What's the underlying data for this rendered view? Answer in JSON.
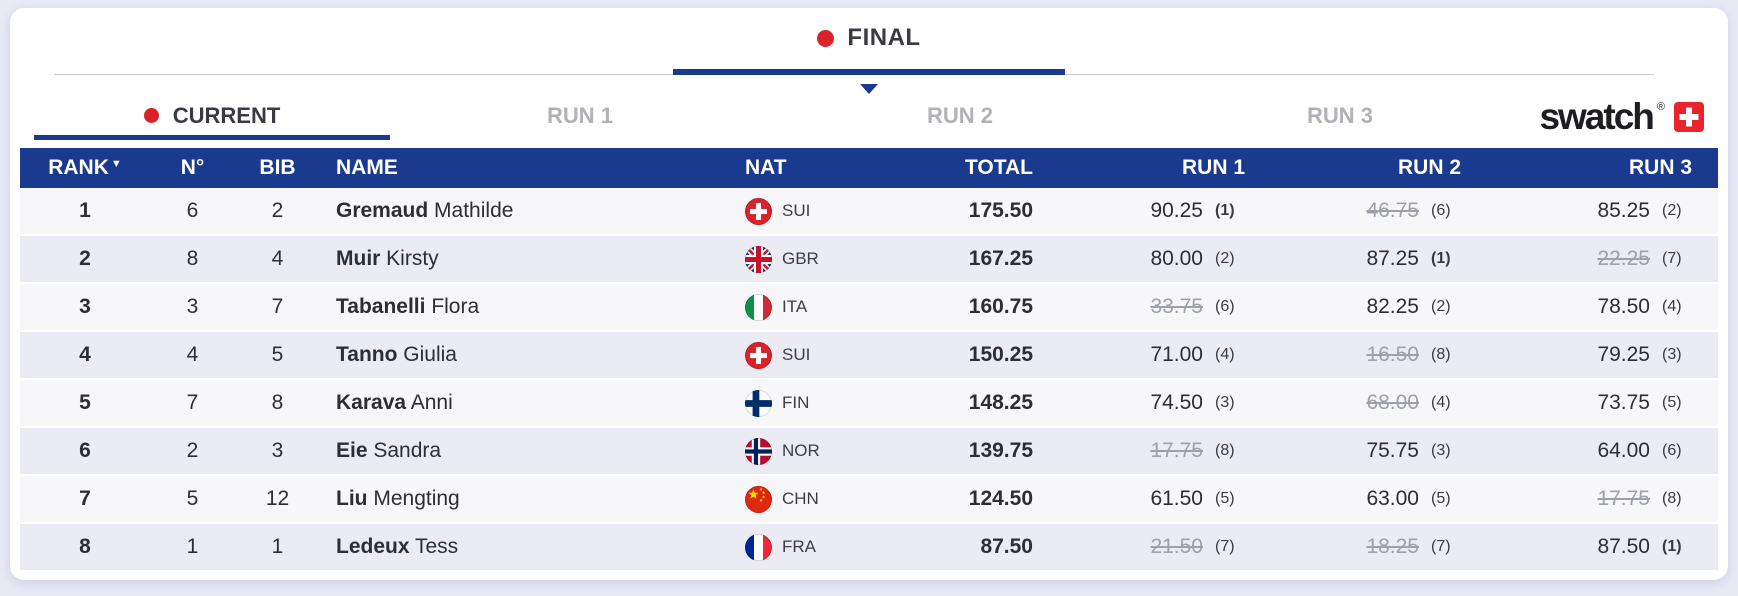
{
  "colors": {
    "page_bg": "#e8e9f5",
    "navy": "#1a3a8f",
    "red": "#d9232a",
    "dark_text": "#3a3a43",
    "inactive_tab": "#b1b1b7",
    "score_text": "#2d2d33",
    "struck_text": "#9ea0a8",
    "row_light": "#f7f7f9",
    "row_dark": "#ebecf3",
    "line_gray": "#c9c9d2",
    "swiss_cross_red": "#e8242c"
  },
  "stage_tab": {
    "label": "FINAL"
  },
  "tabs": [
    {
      "label": "CURRENT",
      "active": true
    },
    {
      "label": "RUN 1",
      "active": false
    },
    {
      "label": "RUN 2",
      "active": false
    },
    {
      "label": "RUN 3",
      "active": false
    }
  ],
  "brand": {
    "text": "swatch",
    "mark": "®"
  },
  "table": {
    "headers": {
      "rank": "RANK",
      "sort_indicator": "▼",
      "number": "N°",
      "bib": "BIB",
      "name": "NAME",
      "nat": "NAT",
      "total": "TOTAL",
      "run1": "RUN 1",
      "run2": "RUN 2",
      "run3": "RUN 3"
    },
    "rows": [
      {
        "rank": "1",
        "number": "6",
        "bib": "2",
        "last_name": "Gremaud",
        "first_name": "Mathilde",
        "nat": "SUI",
        "total": "175.50",
        "runs": [
          {
            "score": "90.25",
            "rank": "(1)",
            "struck": false,
            "best": true
          },
          {
            "score": "46.75",
            "rank": "(6)",
            "struck": true,
            "best": false
          },
          {
            "score": "85.25",
            "rank": "(2)",
            "struck": false,
            "best": false
          }
        ]
      },
      {
        "rank": "2",
        "number": "8",
        "bib": "4",
        "last_name": "Muir",
        "first_name": "Kirsty",
        "nat": "GBR",
        "total": "167.25",
        "runs": [
          {
            "score": "80.00",
            "rank": "(2)",
            "struck": false,
            "best": false
          },
          {
            "score": "87.25",
            "rank": "(1)",
            "struck": false,
            "best": true
          },
          {
            "score": "22.25",
            "rank": "(7)",
            "struck": true,
            "best": false
          }
        ]
      },
      {
        "rank": "3",
        "number": "3",
        "bib": "7",
        "last_name": "Tabanelli",
        "first_name": "Flora",
        "nat": "ITA",
        "total": "160.75",
        "runs": [
          {
            "score": "33.75",
            "rank": "(6)",
            "struck": true,
            "best": false
          },
          {
            "score": "82.25",
            "rank": "(2)",
            "struck": false,
            "best": false
          },
          {
            "score": "78.50",
            "rank": "(4)",
            "struck": false,
            "best": false
          }
        ]
      },
      {
        "rank": "4",
        "number": "4",
        "bib": "5",
        "last_name": "Tanno",
        "first_name": "Giulia",
        "nat": "SUI",
        "total": "150.25",
        "runs": [
          {
            "score": "71.00",
            "rank": "(4)",
            "struck": false,
            "best": false
          },
          {
            "score": "16.50",
            "rank": "(8)",
            "struck": true,
            "best": false
          },
          {
            "score": "79.25",
            "rank": "(3)",
            "struck": false,
            "best": false
          }
        ]
      },
      {
        "rank": "5",
        "number": "7",
        "bib": "8",
        "last_name": "Karava",
        "first_name": "Anni",
        "nat": "FIN",
        "total": "148.25",
        "runs": [
          {
            "score": "74.50",
            "rank": "(3)",
            "struck": false,
            "best": false
          },
          {
            "score": "68.00",
            "rank": "(4)",
            "struck": true,
            "best": false
          },
          {
            "score": "73.75",
            "rank": "(5)",
            "struck": false,
            "best": false
          }
        ]
      },
      {
        "rank": "6",
        "number": "2",
        "bib": "3",
        "last_name": "Eie",
        "first_name": "Sandra",
        "nat": "NOR",
        "total": "139.75",
        "runs": [
          {
            "score": "17.75",
            "rank": "(8)",
            "struck": true,
            "best": false
          },
          {
            "score": "75.75",
            "rank": "(3)",
            "struck": false,
            "best": false
          },
          {
            "score": "64.00",
            "rank": "(6)",
            "struck": false,
            "best": false
          }
        ]
      },
      {
        "rank": "7",
        "number": "5",
        "bib": "12",
        "last_name": "Liu",
        "first_name": "Mengting",
        "nat": "CHN",
        "total": "124.50",
        "runs": [
          {
            "score": "61.50",
            "rank": "(5)",
            "struck": false,
            "best": false
          },
          {
            "score": "63.00",
            "rank": "(5)",
            "struck": false,
            "best": false
          },
          {
            "score": "17.75",
            "rank": "(8)",
            "struck": true,
            "best": false
          }
        ]
      },
      {
        "rank": "8",
        "number": "1",
        "bib": "1",
        "last_name": "Ledeux",
        "first_name": "Tess",
        "nat": "FRA",
        "total": "87.50",
        "runs": [
          {
            "score": "21.50",
            "rank": "(7)",
            "struck": true,
            "best": false
          },
          {
            "score": "18.25",
            "rank": "(7)",
            "struck": true,
            "best": false
          },
          {
            "score": "87.50",
            "rank": "(1)",
            "struck": false,
            "best": true
          }
        ]
      }
    ]
  },
  "flags": {
    "SUI": {
      "type": "cross",
      "bg": "#d8232a",
      "fg": "#ffffff"
    },
    "GBR": {
      "type": "union-jack",
      "bg": "#012169",
      "diag": "#c8102e",
      "fg": "#ffffff"
    },
    "ITA": {
      "type": "vertical",
      "colors": [
        "#109246",
        "#ffffff",
        "#ce2b37"
      ]
    },
    "FIN": {
      "type": "nordic",
      "bg": "#ffffff",
      "cross": "#002f6c"
    },
    "NOR": {
      "type": "nordic-outline",
      "bg": "#ba0c2f",
      "cross": "#00205b",
      "outline": "#ffffff"
    },
    "CHN": {
      "type": "stars",
      "bg": "#de2910",
      "star": "#ffde00"
    },
    "FRA": {
      "type": "vertical",
      "colors": [
        "#002395",
        "#ffffff",
        "#ed2939"
      ]
    }
  }
}
